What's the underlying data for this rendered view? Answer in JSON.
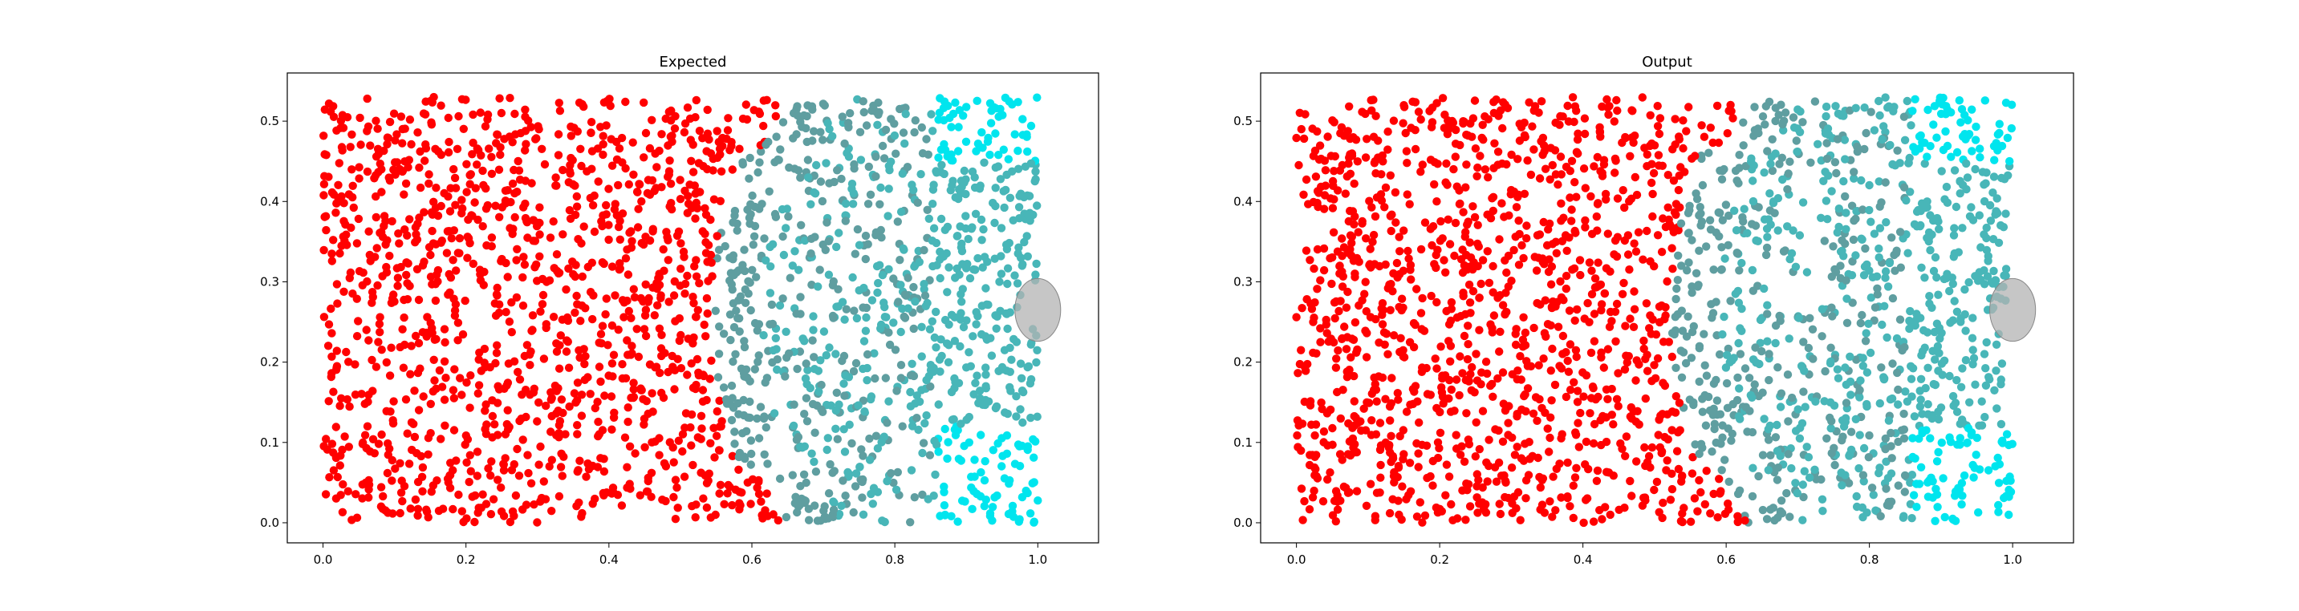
{
  "chart_data": [
    {
      "type": "scatter",
      "title": "Expected",
      "xlabel": "",
      "ylabel": "",
      "xlim": [
        -0.05,
        1.085
      ],
      "ylim": [
        -0.025,
        0.56
      ],
      "xticks": [
        0.0,
        0.2,
        0.4,
        0.6,
        0.8,
        1.0
      ],
      "xtick_labels": [
        "0.0",
        "0.2",
        "0.4",
        "0.6",
        "0.8",
        "1.0"
      ],
      "yticks": [
        0.0,
        0.1,
        0.2,
        0.3,
        0.4,
        0.5
      ],
      "ytick_labels": [
        "0.0",
        "0.1",
        "0.2",
        "0.3",
        "0.4",
        "0.5"
      ],
      "grid": false,
      "points": {
        "x_range": [
          0.0,
          1.0
        ],
        "y_range": [
          0.0,
          0.53
        ],
        "count": 2300,
        "colors": {
          "left_region": "#ff0000",
          "transition": "#5f9ea0",
          "mid_region": "#48b6b8",
          "right_region": "#00e5ee"
        }
      },
      "obstacle": {
        "shape": "circle",
        "cx": 1.0,
        "cy": 0.265,
        "r": 0.032,
        "color": "#b3b3b3"
      }
    },
    {
      "type": "scatter",
      "title": "Output",
      "xlabel": "",
      "ylabel": "",
      "xlim": [
        -0.05,
        1.085
      ],
      "ylim": [
        -0.025,
        0.56
      ],
      "xticks": [
        0.0,
        0.2,
        0.4,
        0.6,
        0.8,
        1.0
      ],
      "xtick_labels": [
        "0.0",
        "0.2",
        "0.4",
        "0.6",
        "0.8",
        "1.0"
      ],
      "yticks": [
        0.0,
        0.1,
        0.2,
        0.3,
        0.4,
        0.5
      ],
      "ytick_labels": [
        "0.0",
        "0.1",
        "0.2",
        "0.3",
        "0.4",
        "0.5"
      ],
      "grid": false,
      "points": {
        "x_range": [
          0.0,
          1.0
        ],
        "y_range": [
          0.0,
          0.53
        ],
        "count": 2300,
        "colors": {
          "left_region": "#ff0000",
          "transition": "#5f9ea0",
          "mid_region": "#48b6b8",
          "right_region": "#00e5ee"
        }
      },
      "obstacle": {
        "shape": "circle",
        "cx": 1.0,
        "cy": 0.265,
        "r": 0.032,
        "color": "#b3b3b3"
      }
    }
  ]
}
